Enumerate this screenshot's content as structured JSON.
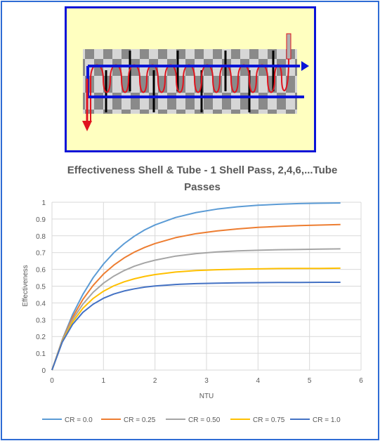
{
  "colors": {
    "frame": "#2e6bd4",
    "diagram_border": "#0a14d8",
    "diagram_bg": "#ffffc0",
    "tube_line": "#0a14d8",
    "shell_flow": "#e0141e",
    "grid": "#d9d9d9",
    "axis_text": "#595959",
    "title_text": "#595959"
  },
  "diagram": {
    "icons": [
      "heat-exchanger-schematic",
      "tube-flow-arrow",
      "shell-flow-arrow"
    ]
  },
  "chart_data": {
    "type": "line",
    "title": "Effectiveness Shell & Tube - 1 Shell Pass, 2,4,6,...Tube Passes",
    "title_lines": [
      "Effectiveness Shell & Tube - 1 Shell Pass, 2,4,6,...Tube",
      "Passes"
    ],
    "xlabel": "NTU",
    "ylabel": "Effectiveness",
    "xlim": [
      0,
      6
    ],
    "ylim": [
      0,
      1
    ],
    "x_ticks": [
      "0",
      "1",
      "2",
      "3",
      "4",
      "5",
      "6"
    ],
    "y_ticks": [
      "0",
      "0.1",
      "0.2",
      "0.3",
      "0.4",
      "0.5",
      "0.6",
      "0.7",
      "0.8",
      "0.9",
      "1"
    ],
    "grid": true,
    "legend_position": "bottom",
    "x": [
      0,
      0.2,
      0.4,
      0.6,
      0.8,
      1.0,
      1.2,
      1.4,
      1.6,
      1.8,
      2.0,
      2.4,
      2.8,
      3.2,
      3.6,
      4.0,
      4.4,
      4.8,
      5.2,
      5.6
    ],
    "series": [
      {
        "name": "CR = 0.0",
        "color": "#5b9bd5",
        "values": [
          0,
          0.181,
          0.33,
          0.451,
          0.551,
          0.632,
          0.699,
          0.753,
          0.798,
          0.835,
          0.865,
          0.909,
          0.939,
          0.959,
          0.973,
          0.982,
          0.988,
          0.992,
          0.994,
          0.996
        ]
      },
      {
        "name": "CR = 0.25",
        "color": "#ed7d31",
        "values": [
          0,
          0.177,
          0.314,
          0.421,
          0.505,
          0.572,
          0.625,
          0.668,
          0.703,
          0.731,
          0.754,
          0.789,
          0.813,
          0.829,
          0.841,
          0.85,
          0.856,
          0.861,
          0.864,
          0.867
        ]
      },
      {
        "name": "CR = 0.50",
        "color": "#a5a5a5",
        "values": [
          0,
          0.174,
          0.3,
          0.393,
          0.464,
          0.518,
          0.56,
          0.593,
          0.619,
          0.639,
          0.655,
          0.679,
          0.694,
          0.704,
          0.71,
          0.714,
          0.717,
          0.719,
          0.721,
          0.722
        ]
      },
      {
        "name": "CR = 0.75",
        "color": "#ffc000",
        "values": [
          0,
          0.17,
          0.286,
          0.368,
          0.427,
          0.47,
          0.502,
          0.526,
          0.544,
          0.558,
          0.569,
          0.584,
          0.593,
          0.598,
          0.601,
          0.603,
          0.605,
          0.606,
          0.606,
          0.607
        ]
      },
      {
        "name": "CR = 1.0",
        "color": "#4472c4",
        "values": [
          0,
          0.167,
          0.272,
          0.344,
          0.393,
          0.428,
          0.453,
          0.471,
          0.484,
          0.494,
          0.501,
          0.51,
          0.515,
          0.518,
          0.52,
          0.521,
          0.522,
          0.522,
          0.523,
          0.523
        ]
      }
    ]
  }
}
